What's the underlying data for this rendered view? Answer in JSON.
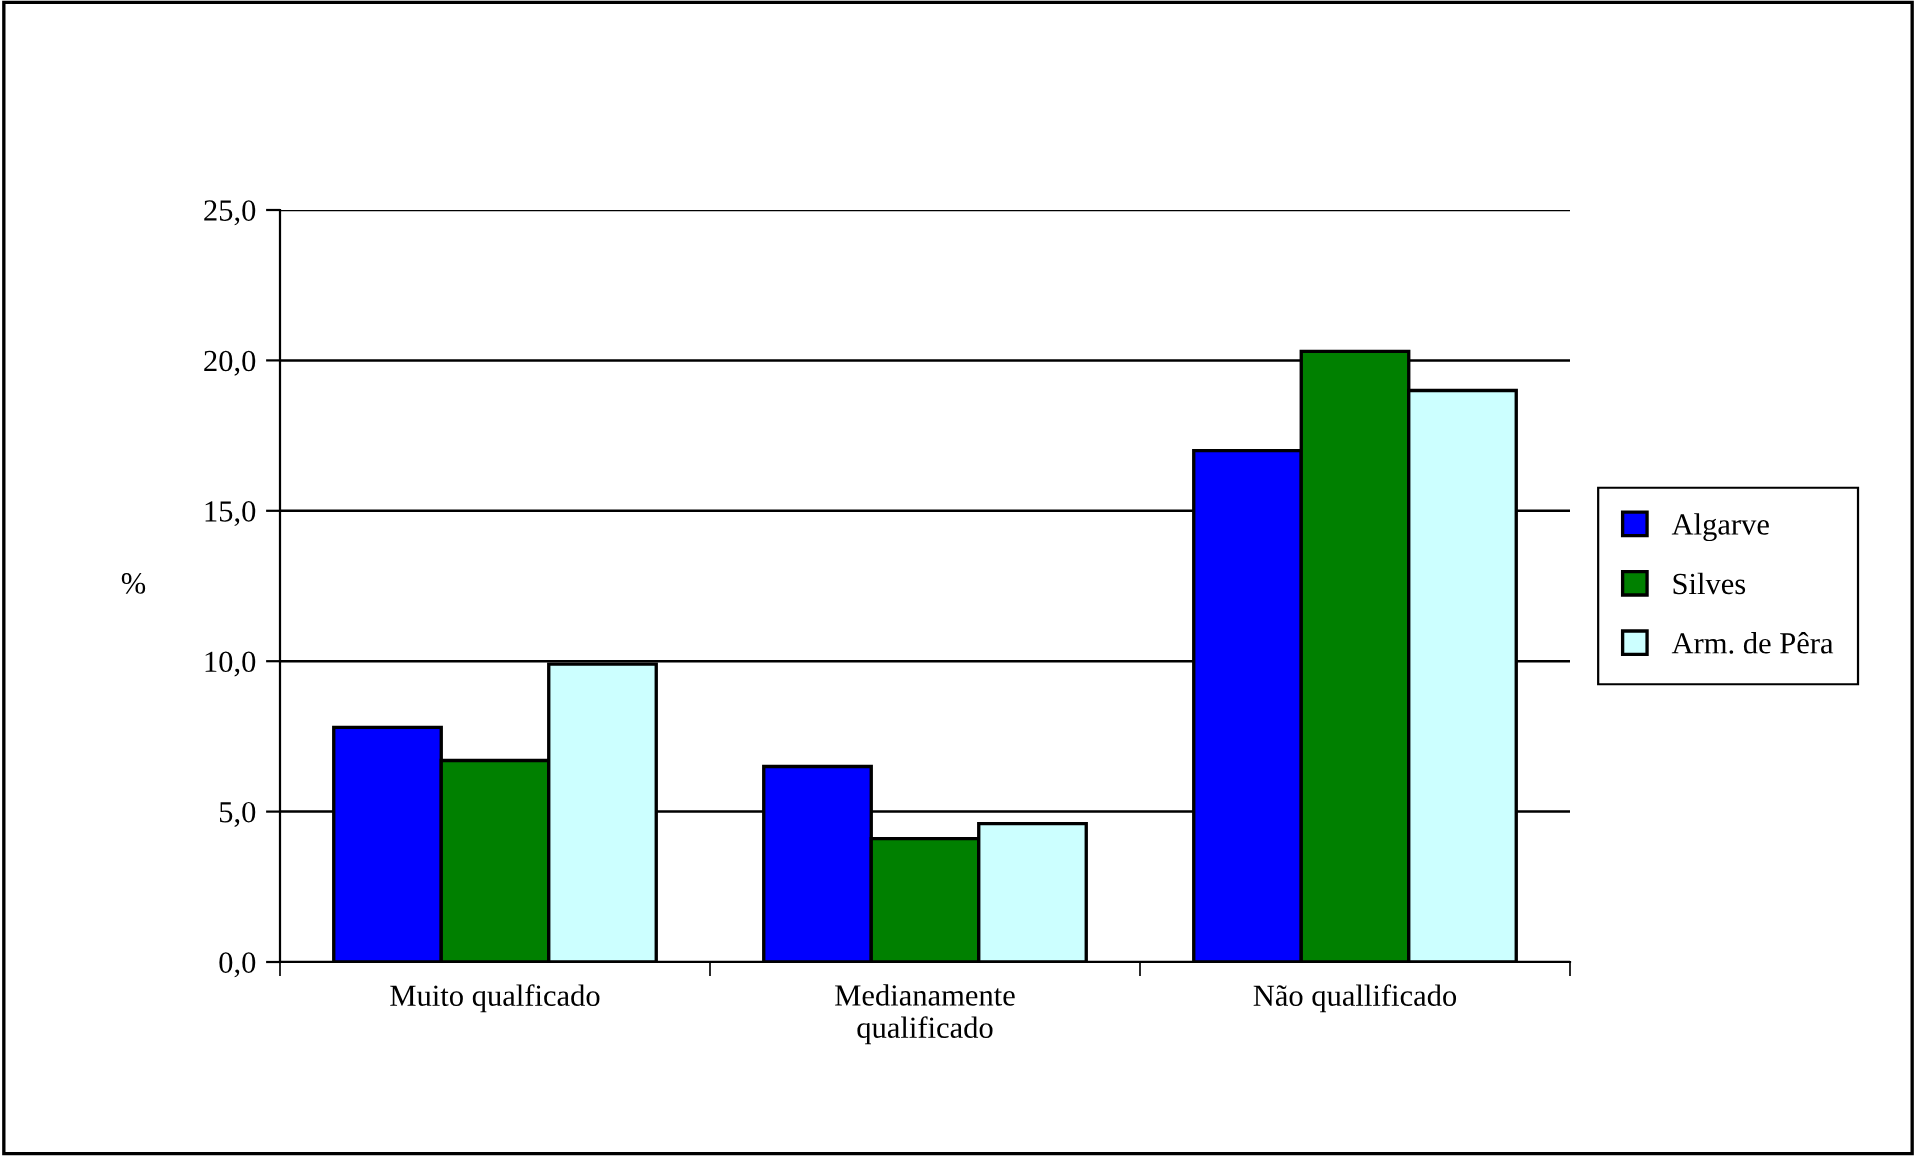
{
  "chart_data": {
    "type": "bar",
    "ylabel": "%",
    "categories": [
      "Muito qualficado",
      "Medianamente\nqualificado",
      "Não quallificado"
    ],
    "series": [
      {
        "name": "Algarve",
        "color": "#0000ff",
        "values": [
          7.8,
          6.5,
          17.0
        ]
      },
      {
        "name": "Silves",
        "color": "#008000",
        "values": [
          6.7,
          4.1,
          20.3
        ]
      },
      {
        "name": "Arm. de Pêra",
        "color": "#ccffff",
        "values": [
          9.9,
          4.6,
          19.0
        ]
      }
    ],
    "ylim": [
      0,
      25
    ],
    "yticks": [
      {
        "value": 0,
        "label": "0,0"
      },
      {
        "value": 5,
        "label": "5,0"
      },
      {
        "value": 10,
        "label": "10,0"
      },
      {
        "value": 15,
        "label": "15,0"
      },
      {
        "value": 20,
        "label": "20,0"
      },
      {
        "value": 25,
        "label": "25,0"
      }
    ],
    "grid": "y",
    "legend": "right"
  }
}
